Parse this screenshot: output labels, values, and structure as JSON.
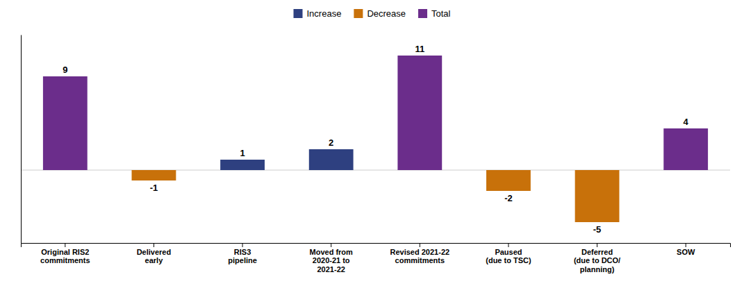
{
  "chart_data": {
    "type": "bar",
    "categories": [
      "Original RIS2\ncommitments",
      "Delivered\nearly",
      "RIS3\npipeline",
      "Moved from\n2020-21 to\n2021-22",
      "Revised 2021-22\ncommitments",
      "Paused\n(due to TSC)",
      "Deferred\n(due to DCO/\nplanning)",
      "SOW"
    ],
    "series": [
      {
        "name": "Increase",
        "color": "#2E4080",
        "values": [
          null,
          null,
          1,
          2,
          null,
          null,
          null,
          null
        ]
      },
      {
        "name": "Decrease",
        "color": "#C8710A",
        "values": [
          null,
          -1,
          null,
          null,
          null,
          -2,
          -5,
          null
        ]
      },
      {
        "name": "Total",
        "color": "#6B2D8B",
        "values": [
          9,
          null,
          null,
          null,
          11,
          null,
          null,
          4
        ]
      }
    ],
    "ylim": [
      -7,
      13
    ],
    "data_labels": true,
    "tick_labels": "x",
    "legend": "upper center",
    "grid": false
  }
}
